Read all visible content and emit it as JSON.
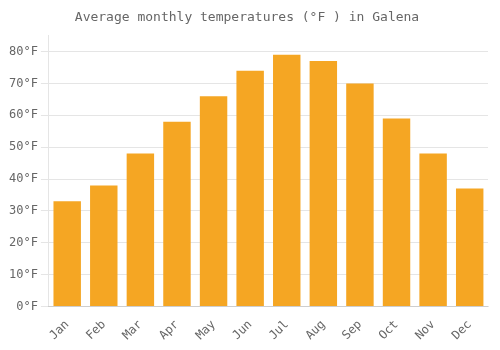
{
  "chart_data": {
    "type": "bar",
    "title": "Average monthly temperatures (°F ) in Galena",
    "categories": [
      "Jan",
      "Feb",
      "Mar",
      "Apr",
      "May",
      "Jun",
      "Jul",
      "Aug",
      "Sep",
      "Oct",
      "Nov",
      "Dec"
    ],
    "values": [
      33,
      38,
      48,
      58,
      66,
      74,
      79,
      77,
      70,
      59,
      48,
      37
    ],
    "color": "#F5A623",
    "ylim": [
      0,
      85
    ],
    "yticks": [
      {
        "value": 0,
        "label": "0°F"
      },
      {
        "value": 10,
        "label": "10°F"
      },
      {
        "value": 20,
        "label": "20°F"
      },
      {
        "value": 30,
        "label": "30°F"
      },
      {
        "value": 40,
        "label": "40°F"
      },
      {
        "value": 50,
        "label": "50°F"
      },
      {
        "value": 60,
        "label": "60°F"
      },
      {
        "value": 70,
        "label": "70°F"
      },
      {
        "value": 80,
        "label": "80°F"
      }
    ],
    "grid": true
  }
}
